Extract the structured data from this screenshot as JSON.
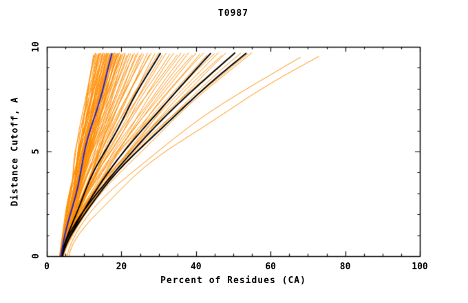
{
  "chart_data": {
    "type": "line",
    "title": "T0987",
    "xlabel": "Percent of Residues (CA)",
    "ylabel": "Distance Cutoff, A",
    "xlim": [
      0,
      100
    ],
    "ylim": [
      0,
      10
    ],
    "x_ticks": [
      0,
      20,
      40,
      60,
      80,
      100
    ],
    "y_ticks": [
      0,
      5,
      10
    ],
    "x_minor_step": 5,
    "y_minor_step": 1,
    "grid": false,
    "legend": "none",
    "frame": "full-box-with-inward-ticks",
    "colors": {
      "model_curves": "#ff8c00",
      "highlight_curves": "#000000",
      "reference_curve": "#2222cc",
      "axis": "#000000",
      "background": "#ffffff"
    },
    "curve_format": "[start_x_percent_at_y0, end_x_percent_at_top, end_y_cutoff, shape_power]; x(y) = start + (end-start)*(y/end_y)^power",
    "series_groups": [
      {
        "name": "model-curves-orange",
        "color": "#ff8c00",
        "line_width": 1,
        "curves": [
          [
            3.5,
            12.5,
            9.6,
            1.05
          ],
          [
            3.8,
            13,
            9.7,
            1.1
          ],
          [
            4.0,
            13.5,
            9.65,
            1.0
          ],
          [
            3.6,
            14,
            9.7,
            1.15
          ],
          [
            4.2,
            14,
            9.6,
            1.05
          ],
          [
            3.9,
            14.5,
            9.72,
            1.1
          ],
          [
            3.4,
            15,
            9.68,
            1.2
          ],
          [
            4.1,
            15,
            9.6,
            1.0
          ],
          [
            3.7,
            15.5,
            9.7,
            1.1
          ],
          [
            4.3,
            15.5,
            9.65,
            1.05
          ],
          [
            3.5,
            16,
            9.7,
            1.15
          ],
          [
            4.0,
            16,
            9.6,
            1.1
          ],
          [
            3.8,
            16.5,
            9.72,
            1.0
          ],
          [
            4.2,
            16.5,
            9.66,
            1.2
          ],
          [
            3.6,
            17,
            9.7,
            1.1
          ],
          [
            4.4,
            17,
            9.62,
            1.05
          ],
          [
            3.9,
            17.5,
            9.7,
            1.15
          ],
          [
            4.1,
            17.5,
            9.68,
            1.1
          ],
          [
            3.5,
            18,
            9.72,
            1.05
          ],
          [
            4.0,
            18,
            9.6,
            1.2
          ],
          [
            3.7,
            18.5,
            9.7,
            1.1
          ],
          [
            4.3,
            18.5,
            9.65,
            1.0
          ],
          [
            3.8,
            19,
            9.7,
            1.15
          ],
          [
            4.1,
            19,
            9.62,
            1.1
          ],
          [
            3.6,
            19.5,
            9.72,
            1.05
          ],
          [
            4.2,
            20,
            9.68,
            1.2
          ],
          [
            3.9,
            20,
            9.6,
            1.1
          ],
          [
            3.5,
            20.5,
            9.7,
            1.15
          ],
          [
            4.0,
            21,
            9.65,
            1.05
          ],
          [
            4.3,
            21,
            9.72,
            1.1
          ],
          [
            3.7,
            21.5,
            9.6,
            1.2
          ],
          [
            4.1,
            22,
            9.7,
            1.1
          ],
          [
            3.8,
            22.5,
            9.68,
            1.15
          ],
          [
            4.4,
            23,
            9.62,
            1.05
          ],
          [
            3.6,
            23.5,
            9.7,
            1.25
          ],
          [
            4.0,
            24,
            9.66,
            1.1
          ],
          [
            4.2,
            24.5,
            9.72,
            1.15
          ],
          [
            3.9,
            25,
            9.6,
            1.2
          ],
          [
            3.5,
            25.5,
            9.7,
            1.1
          ],
          [
            4.1,
            26,
            9.65,
            1.25
          ],
          [
            4.3,
            27,
            9.7,
            1.15
          ],
          [
            3.8,
            27.5,
            9.62,
            1.2
          ],
          [
            4.0,
            28,
            9.7,
            1.3
          ],
          [
            3.7,
            29,
            9.68,
            1.15
          ],
          [
            4.2,
            30,
            9.72,
            1.25
          ],
          [
            3.9,
            31,
            9.6,
            1.2
          ],
          [
            4.4,
            32,
            9.7,
            1.3
          ],
          [
            3.6,
            33,
            9.66,
            1.2
          ],
          [
            4.1,
            34,
            9.7,
            1.25
          ],
          [
            3.8,
            35,
            9.62,
            1.35
          ],
          [
            4.0,
            36,
            9.7,
            1.25
          ],
          [
            4.3,
            37,
            9.68,
            1.3
          ],
          [
            3.7,
            38,
            9.72,
            1.2
          ],
          [
            4.2,
            39,
            9.6,
            1.35
          ],
          [
            3.9,
            40,
            9.7,
            1.3
          ],
          [
            4.1,
            41,
            9.65,
            1.25
          ],
          [
            3.6,
            42,
            9.7,
            1.35
          ],
          [
            4.0,
            43,
            9.62,
            1.3
          ],
          [
            4.4,
            44,
            9.7,
            1.25
          ],
          [
            3.8,
            45,
            9.68,
            1.4
          ],
          [
            4.2,
            46,
            9.72,
            1.3
          ],
          [
            3.9,
            47,
            9.6,
            1.35
          ],
          [
            4.1,
            48,
            9.7,
            1.3
          ],
          [
            3.7,
            50,
            9.66,
            1.4
          ],
          [
            4.3,
            52,
            9.7,
            1.35
          ],
          [
            4.0,
            54,
            9.68,
            1.4
          ],
          [
            4.5,
            55,
            9.72,
            1.35
          ],
          [
            3.6,
            12.8,
            9.66,
            1.1
          ],
          [
            4.0,
            13.2,
            9.7,
            1.05
          ],
          [
            3.9,
            13.8,
            9.64,
            1.15
          ],
          [
            4.2,
            14.2,
            9.7,
            1.1
          ],
          [
            3.5,
            14.8,
            9.68,
            1.05
          ],
          [
            4.1,
            15.2,
            9.72,
            1.1
          ],
          [
            3.7,
            15.8,
            9.66,
            1.2
          ],
          [
            4.3,
            16.2,
            9.7,
            1.05
          ],
          [
            3.8,
            16.8,
            9.64,
            1.1
          ],
          [
            4.0,
            17.2,
            9.7,
            1.15
          ],
          [
            3.6,
            17.8,
            9.68,
            1.1
          ],
          [
            4.2,
            18.2,
            9.72,
            1.05
          ],
          [
            3.9,
            18.8,
            9.66,
            1.15
          ],
          [
            4.1,
            19.2,
            9.7,
            1.1
          ],
          [
            3.7,
            19.8,
            9.64,
            1.2
          ],
          [
            5.5,
            68,
            9.5,
            1.5
          ],
          [
            6.0,
            73,
            9.55,
            1.45
          ]
        ]
      },
      {
        "name": "highlight-curves-black",
        "color": "#000000",
        "line_width": 2,
        "curves": [
          [
            4.0,
            30.5,
            9.7,
            1.25
          ],
          [
            4.2,
            44,
            9.7,
            1.3
          ],
          [
            3.8,
            50.5,
            9.72,
            1.35
          ],
          [
            4.1,
            53.5,
            9.7,
            1.35
          ]
        ]
      },
      {
        "name": "reference-curve-blue",
        "color": "#2222cc",
        "line_width": 2,
        "curves": [
          [
            3.8,
            17.5,
            9.7,
            1.1
          ]
        ]
      }
    ]
  }
}
